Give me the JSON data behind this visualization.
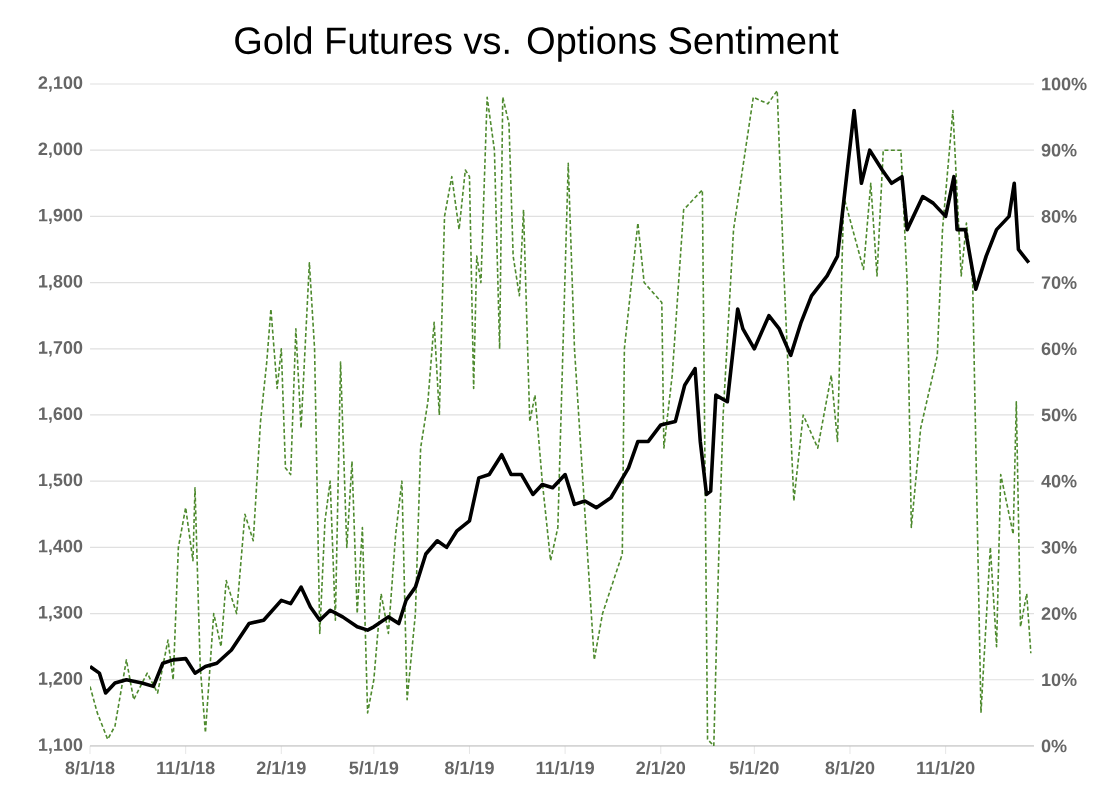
{
  "chart_data": {
    "type": "line",
    "title": "Gold Futures vs. Options Sentiment",
    "xlim": [
      "2018-08-01",
      "2021-01-25"
    ],
    "xticks": [
      {
        "value": "2018-08-01",
        "label": "8/1/18"
      },
      {
        "value": "2018-11-01",
        "label": "11/1/18"
      },
      {
        "value": "2019-02-01",
        "label": "2/1/19"
      },
      {
        "value": "2019-05-01",
        "label": "5/1/19"
      },
      {
        "value": "2019-08-01",
        "label": "8/1/19"
      },
      {
        "value": "2019-11-01",
        "label": "11/1/19"
      },
      {
        "value": "2020-02-01",
        "label": "2/1/20"
      },
      {
        "value": "2020-05-01",
        "label": "5/1/20"
      },
      {
        "value": "2020-08-01",
        "label": "8/1/20"
      },
      {
        "value": "2020-11-01",
        "label": "11/1/20"
      }
    ],
    "ylim": [
      1100,
      2100
    ],
    "yticks": [
      {
        "value": 1100,
        "label": "1,100"
      },
      {
        "value": 1200,
        "label": "1,200"
      },
      {
        "value": 1300,
        "label": "1,300"
      },
      {
        "value": 1400,
        "label": "1,400"
      },
      {
        "value": 1500,
        "label": "1,500"
      },
      {
        "value": 1600,
        "label": "1,600"
      },
      {
        "value": 1700,
        "label": "1,700"
      },
      {
        "value": 1800,
        "label": "1,800"
      },
      {
        "value": 1900,
        "label": "1,900"
      },
      {
        "value": 2000,
        "label": "2,000"
      },
      {
        "value": 2100,
        "label": "2,100"
      }
    ],
    "y2lim": [
      0,
      100
    ],
    "y2ticks": [
      {
        "value": 0,
        "label": "0%"
      },
      {
        "value": 10,
        "label": "10%"
      },
      {
        "value": 20,
        "label": "20%"
      },
      {
        "value": 30,
        "label": "30%"
      },
      {
        "value": 40,
        "label": "40%"
      },
      {
        "value": 50,
        "label": "50%"
      },
      {
        "value": 60,
        "label": "60%"
      },
      {
        "value": 70,
        "label": "70%"
      },
      {
        "value": 80,
        "label": "80%"
      },
      {
        "value": 90,
        "label": "90%"
      },
      {
        "value": 100,
        "label": "100%"
      }
    ],
    "grid": "y",
    "series": [
      {
        "color": "#4e8a2e",
        "line_style": "dashed",
        "axis": "y2",
        "x": [
          "2018-08-01",
          "2018-08-08",
          "2018-08-18",
          "2018-08-25",
          "2018-09-05",
          "2018-09-12",
          "2018-09-25",
          "2018-10-05",
          "2018-10-15",
          "2018-10-20",
          "2018-10-25",
          "2018-11-01",
          "2018-11-08",
          "2018-11-10",
          "2018-11-15",
          "2018-11-20",
          "2018-11-28",
          "2018-12-05",
          "2018-12-10",
          "2018-12-20",
          "2018-12-28",
          "2019-01-05",
          "2019-01-12",
          "2019-01-18",
          "2019-01-22",
          "2019-01-28",
          "2019-02-01",
          "2019-02-05",
          "2019-02-10",
          "2019-02-15",
          "2019-02-20",
          "2019-02-28",
          "2019-03-05",
          "2019-03-10",
          "2019-03-15",
          "2019-03-20",
          "2019-03-25",
          "2019-03-30",
          "2019-04-05",
          "2019-04-10",
          "2019-04-15",
          "2019-04-20",
          "2019-04-25",
          "2019-05-01",
          "2019-05-08",
          "2019-05-15",
          "2019-05-22",
          "2019-05-28",
          "2019-06-02",
          "2019-06-10",
          "2019-06-15",
          "2019-06-22",
          "2019-06-28",
          "2019-07-03",
          "2019-07-08",
          "2019-07-15",
          "2019-07-22",
          "2019-07-28",
          "2019-08-01",
          "2019-08-05",
          "2019-08-08",
          "2019-08-12",
          "2019-08-18",
          "2019-08-25",
          "2019-08-30",
          "2019-09-02",
          "2019-09-08",
          "2019-09-12",
          "2019-09-18",
          "2019-09-22",
          "2019-09-28",
          "2019-10-03",
          "2019-10-10",
          "2019-10-18",
          "2019-10-25",
          "2019-11-04",
          "2019-11-10",
          "2019-11-29",
          "2019-12-07",
          "2019-12-26",
          "2019-12-28",
          "2020-01-10",
          "2020-01-16",
          "2020-02-02",
          "2020-02-04",
          "2020-02-12",
          "2020-02-23",
          "2020-03-12",
          "2020-03-17",
          "2020-03-23",
          "2020-03-28",
          "2020-04-01",
          "2020-04-11",
          "2020-04-30",
          "2020-05-14",
          "2020-05-23",
          "2020-05-29",
          "2020-06-08",
          "2020-06-17",
          "2020-07-01",
          "2020-07-14",
          "2020-07-20",
          "2020-07-26",
          "2020-08-14",
          "2020-08-21",
          "2020-08-27",
          "2020-09-02",
          "2020-09-19",
          "2020-09-25",
          "2020-09-29",
          "2020-10-08",
          "2020-10-24",
          "2020-10-29",
          "2020-11-08",
          "2020-11-16",
          "2020-11-21",
          "2020-11-27",
          "2020-12-05",
          "2020-12-14",
          "2020-12-20",
          "2020-12-24",
          "2021-01-05",
          "2021-01-08",
          "2021-01-12",
          "2021-01-18",
          "2021-01-22"
        ],
        "values": [
          9,
          5,
          1,
          3,
          13,
          7,
          11,
          8,
          16,
          10,
          30,
          36,
          28,
          39,
          12,
          2,
          20,
          15,
          25,
          20,
          35,
          31,
          49,
          58,
          66,
          54,
          60,
          42,
          41,
          63,
          48,
          73,
          60,
          17,
          34,
          40,
          19,
          58,
          30,
          43,
          20,
          33,
          5,
          10,
          23,
          17,
          32,
          40,
          7,
          20,
          45,
          52,
          64,
          50,
          80,
          86,
          78,
          87,
          86,
          54,
          74,
          70,
          98,
          90,
          60,
          98,
          94,
          74,
          68,
          81,
          49,
          53,
          40,
          28,
          33,
          88,
          60,
          13,
          20,
          29,
          60,
          79,
          70,
          67,
          45,
          56,
          81,
          84,
          1,
          0,
          30,
          50,
          78,
          98,
          97,
          99,
          73,
          37,
          50,
          45,
          56,
          46,
          83,
          72,
          85,
          71,
          90,
          90,
          70,
          33,
          48,
          59,
          78,
          96,
          71,
          79,
          70,
          5,
          30,
          15,
          41,
          32,
          52,
          18,
          23,
          14
        ]
      },
      {
        "color": "#000000",
        "line_style": "solid",
        "axis": "y",
        "x": [
          "2018-08-01",
          "2018-08-10",
          "2018-08-16",
          "2018-08-25",
          "2018-09-05",
          "2018-09-20",
          "2018-10-01",
          "2018-10-10",
          "2018-10-20",
          "2018-11-01",
          "2018-11-10",
          "2018-11-20",
          "2018-12-01",
          "2018-12-15",
          "2019-01-01",
          "2019-01-15",
          "2019-02-01",
          "2019-02-10",
          "2019-02-20",
          "2019-03-01",
          "2019-03-10",
          "2019-03-20",
          "2019-04-01",
          "2019-04-15",
          "2019-04-25",
          "2019-05-01",
          "2019-05-15",
          "2019-05-25",
          "2019-06-01",
          "2019-06-10",
          "2019-06-20",
          "2019-07-01",
          "2019-07-10",
          "2019-07-20",
          "2019-08-01",
          "2019-08-10",
          "2019-08-20",
          "2019-09-01",
          "2019-09-10",
          "2019-09-20",
          "2019-10-01",
          "2019-10-10",
          "2019-10-20",
          "2019-11-01",
          "2019-11-10",
          "2019-11-20",
          "2019-12-01",
          "2019-12-15",
          "2020-01-01",
          "2020-01-10",
          "2020-01-20",
          "2020-02-01",
          "2020-02-15",
          "2020-02-24",
          "2020-03-05",
          "2020-03-10",
          "2020-03-16",
          "2020-03-20",
          "2020-03-25",
          "2020-04-05",
          "2020-04-15",
          "2020-04-20",
          "2020-05-01",
          "2020-05-15",
          "2020-05-25",
          "2020-06-05",
          "2020-06-15",
          "2020-06-25",
          "2020-07-10",
          "2020-07-20",
          "2020-07-28",
          "2020-08-05",
          "2020-08-12",
          "2020-08-20",
          "2020-09-01",
          "2020-09-10",
          "2020-09-20",
          "2020-09-25",
          "2020-10-01",
          "2020-10-10",
          "2020-10-20",
          "2020-11-01",
          "2020-11-09",
          "2020-11-12",
          "2020-11-20",
          "2020-11-30",
          "2020-12-10",
          "2020-12-20",
          "2021-01-01",
          "2021-01-06",
          "2021-01-10",
          "2021-01-15",
          "2021-01-20"
        ],
        "values": [
          1220,
          1210,
          1180,
          1195,
          1200,
          1195,
          1190,
          1225,
          1230,
          1232,
          1210,
          1220,
          1225,
          1245,
          1285,
          1290,
          1320,
          1315,
          1340,
          1310,
          1290,
          1305,
          1295,
          1280,
          1275,
          1280,
          1295,
          1285,
          1320,
          1340,
          1390,
          1410,
          1400,
          1425,
          1440,
          1505,
          1510,
          1540,
          1510,
          1510,
          1480,
          1495,
          1490,
          1510,
          1465,
          1470,
          1460,
          1475,
          1520,
          1560,
          1560,
          1585,
          1590,
          1645,
          1670,
          1560,
          1480,
          1485,
          1630,
          1620,
          1760,
          1730,
          1700,
          1750,
          1730,
          1690,
          1740,
          1780,
          1810,
          1840,
          1950,
          2060,
          1950,
          2000,
          1970,
          1950,
          1960,
          1880,
          1900,
          1930,
          1920,
          1900,
          1960,
          1880,
          1880,
          1790,
          1840,
          1880,
          1900,
          1950,
          1850,
          1840,
          1830
        ]
      }
    ]
  }
}
